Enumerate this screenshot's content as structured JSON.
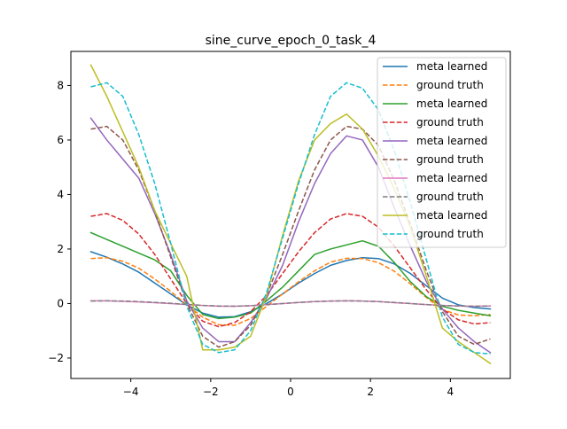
{
  "chart_data": {
    "type": "line",
    "title": "sine_curve_epoch_0_task_4",
    "xlabel": "",
    "ylabel": "",
    "xlim": [
      -5.5,
      5.5
    ],
    "ylim": [
      -2.75,
      9.25
    ],
    "xticks": [
      -4,
      -2,
      0,
      2,
      4
    ],
    "yticks": [
      -2,
      0,
      2,
      4,
      6,
      8
    ],
    "grid": false,
    "legend_position": "top-right",
    "x": [
      -5.0,
      -4.6,
      -4.2,
      -3.8,
      -3.4,
      -3.0,
      -2.6,
      -2.2,
      -1.8,
      -1.4,
      -1.0,
      -0.6,
      -0.2,
      0.2,
      0.6,
      1.0,
      1.4,
      1.8,
      2.2,
      2.6,
      3.0,
      3.4,
      3.8,
      4.2,
      4.6,
      5.0
    ],
    "series": [
      {
        "name": "meta learned",
        "color": "#1f77b4",
        "dash": "solid",
        "values": [
          1.9,
          1.7,
          1.45,
          1.15,
          0.75,
          0.35,
          -0.05,
          -0.35,
          -0.5,
          -0.48,
          -0.3,
          0.0,
          0.35,
          0.75,
          1.1,
          1.4,
          1.58,
          1.68,
          1.65,
          1.45,
          1.1,
          0.65,
          0.2,
          -0.05,
          -0.15,
          -0.2
        ]
      },
      {
        "name": "ground truth",
        "color": "#ff7f0e",
        "dash": "dashed",
        "values": [
          1.65,
          1.68,
          1.55,
          1.3,
          0.9,
          0.45,
          -0.05,
          -0.5,
          -0.78,
          -0.8,
          -0.55,
          -0.1,
          0.35,
          0.8,
          1.2,
          1.52,
          1.66,
          1.65,
          1.5,
          1.18,
          0.72,
          0.22,
          -0.22,
          -0.42,
          -0.45,
          -0.4
        ]
      },
      {
        "name": "meta learned",
        "color": "#2ca02c",
        "dash": "solid",
        "values": [
          2.6,
          2.35,
          2.1,
          1.85,
          1.6,
          1.2,
          0.3,
          -0.4,
          -0.55,
          -0.5,
          -0.35,
          0.1,
          0.6,
          1.2,
          1.8,
          2.0,
          2.15,
          2.3,
          2.1,
          1.5,
          0.8,
          0.25,
          -0.1,
          -0.25,
          -0.35,
          -0.45
        ]
      },
      {
        "name": "ground truth",
        "color": "#d62728",
        "dash": "dashed",
        "values": [
          3.2,
          3.3,
          3.05,
          2.55,
          1.8,
          0.9,
          0.0,
          -0.65,
          -0.85,
          -0.7,
          -0.3,
          0.3,
          1.1,
          1.9,
          2.6,
          3.1,
          3.3,
          3.2,
          2.8,
          2.1,
          1.3,
          0.5,
          -0.2,
          -0.6,
          -0.75,
          -0.7
        ]
      },
      {
        "name": "meta learned",
        "color": "#9467bd",
        "dash": "solid",
        "values": [
          6.8,
          6.0,
          5.3,
          4.6,
          3.3,
          1.8,
          0.1,
          -0.9,
          -1.4,
          -1.4,
          -0.7,
          0.2,
          1.4,
          3.0,
          4.4,
          5.5,
          6.15,
          6.0,
          5.0,
          3.5,
          2.1,
          0.8,
          -0.2,
          -0.9,
          -1.4,
          -1.8
        ]
      },
      {
        "name": "ground truth",
        "color": "#8c564b",
        "dash": "dashed",
        "values": [
          6.4,
          6.5,
          6.0,
          4.9,
          3.4,
          1.7,
          0.0,
          -1.2,
          -1.6,
          -1.4,
          -0.8,
          0.3,
          1.8,
          3.4,
          4.9,
          6.0,
          6.5,
          6.4,
          5.8,
          4.5,
          2.9,
          1.2,
          -0.3,
          -1.2,
          -1.5,
          -1.3
        ]
      },
      {
        "name": "meta learned",
        "color": "#e377c2",
        "dash": "solid",
        "values": [
          0.1,
          0.1,
          0.08,
          0.06,
          0.03,
          0.0,
          -0.04,
          -0.07,
          -0.1,
          -0.1,
          -0.08,
          -0.04,
          0.0,
          0.04,
          0.07,
          0.09,
          0.1,
          0.09,
          0.07,
          0.03,
          0.0,
          -0.04,
          -0.07,
          -0.09,
          -0.1,
          -0.09
        ]
      },
      {
        "name": "ground truth",
        "color": "#7f7f7f",
        "dash": "dashed",
        "values": [
          0.09,
          0.1,
          0.09,
          0.07,
          0.04,
          0.01,
          -0.03,
          -0.07,
          -0.09,
          -0.1,
          -0.08,
          -0.04,
          0.0,
          0.04,
          0.07,
          0.09,
          0.1,
          0.09,
          0.07,
          0.04,
          0.0,
          -0.04,
          -0.07,
          -0.09,
          -0.1,
          -0.09
        ]
      },
      {
        "name": "meta learned",
        "color": "#bcbd22",
        "dash": "solid",
        "values": [
          8.75,
          7.6,
          6.3,
          5.0,
          3.4,
          2.2,
          1.0,
          -1.7,
          -1.7,
          -1.6,
          -1.2,
          0.3,
          2.5,
          4.5,
          6.0,
          6.6,
          6.95,
          6.4,
          5.4,
          4.2,
          2.8,
          1.0,
          -0.9,
          -1.4,
          -1.8,
          -2.2
        ]
      },
      {
        "name": "ground truth",
        "color": "#17becf",
        "dash": "dashed",
        "values": [
          7.95,
          8.1,
          7.6,
          6.2,
          4.4,
          2.2,
          -0.1,
          -1.5,
          -1.8,
          -1.7,
          -1.0,
          0.4,
          2.4,
          4.4,
          6.2,
          7.6,
          8.1,
          7.9,
          7.1,
          5.6,
          3.7,
          1.6,
          -0.5,
          -1.5,
          -1.8,
          -1.85
        ]
      }
    ]
  }
}
